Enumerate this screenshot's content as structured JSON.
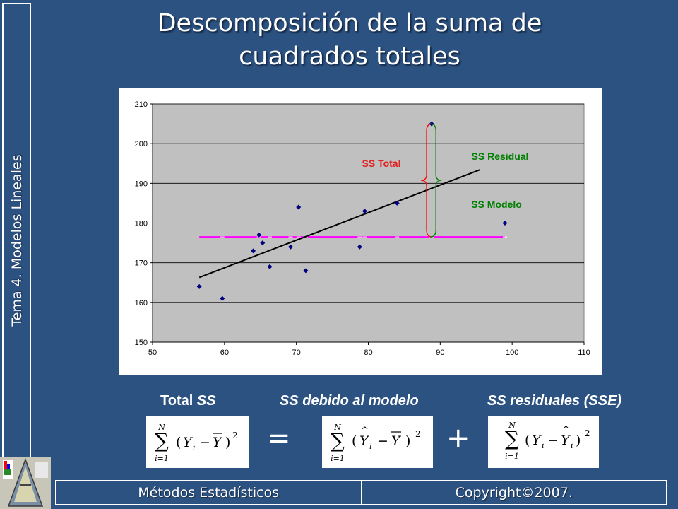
{
  "slide": {
    "side_label": "Tema 4. Modelos Lineales",
    "title_line1": "Descomposición de la suma de",
    "title_line2": "cuadrados totales",
    "label_total_ss_prefix": "Total ",
    "label_total_ss_italic": "SS",
    "label_model": "SS debido al modelo",
    "label_residual": "SS residuales (SSE)",
    "op_equals": "=",
    "op_plus": "+",
    "footer_left": "Métodos Estadísticos",
    "footer_right": "Copyright©2007."
  },
  "formulas": {
    "sum_upper": "N",
    "sum_lower": "i=1",
    "power": "2"
  },
  "colors": {
    "background": "#2c5282",
    "plot_area": "#c0c0c0",
    "points": "#000080",
    "regression_line": "#000000",
    "mean_line": "#ff00ff",
    "total_brace": "#ff0000",
    "residual_brace": "#008000",
    "total_text": "#e02020",
    "model_residual_text": "#008000"
  },
  "chart_data": {
    "type": "scatter",
    "xlim": [
      50,
      110
    ],
    "ylim": [
      150,
      210
    ],
    "x_ticks": [
      50,
      60,
      70,
      80,
      90,
      100,
      110
    ],
    "y_ticks": [
      150,
      160,
      170,
      180,
      190,
      200,
      210
    ],
    "grid": "horizontal",
    "points": [
      {
        "x": 56.5,
        "y": 164
      },
      {
        "x": 59.7,
        "y": 161
      },
      {
        "x": 64,
        "y": 173
      },
      {
        "x": 64.8,
        "y": 177
      },
      {
        "x": 65.3,
        "y": 175
      },
      {
        "x": 66.3,
        "y": 169
      },
      {
        "x": 69.2,
        "y": 174
      },
      {
        "x": 70.3,
        "y": 184
      },
      {
        "x": 71.3,
        "y": 168
      },
      {
        "x": 78.8,
        "y": 174
      },
      {
        "x": 79.5,
        "y": 183
      },
      {
        "x": 84,
        "y": 185
      },
      {
        "x": 88.8,
        "y": 205
      },
      {
        "x": 99,
        "y": 180
      }
    ],
    "regression_line": {
      "x": [
        56.5,
        95.5
      ],
      "y": [
        166.3,
        193.4
      ]
    },
    "mean_line": {
      "x": [
        56.5,
        99
      ],
      "y": [
        176.5,
        176.5
      ]
    },
    "mean_markers_x": [
      59.7,
      64.8,
      66.3,
      69.2,
      70.3,
      71.3,
      78.8,
      79.5,
      84,
      88.8,
      99
    ],
    "braces": {
      "total": {
        "x": 88.3,
        "y1": 176.5,
        "y2": 205
      },
      "residual": {
        "x": 89.2,
        "y1": 176.5,
        "y2": 205
      }
    },
    "annotations": {
      "total": "SS Total",
      "residual": "SS Residual",
      "model": "SS Modelo"
    }
  }
}
